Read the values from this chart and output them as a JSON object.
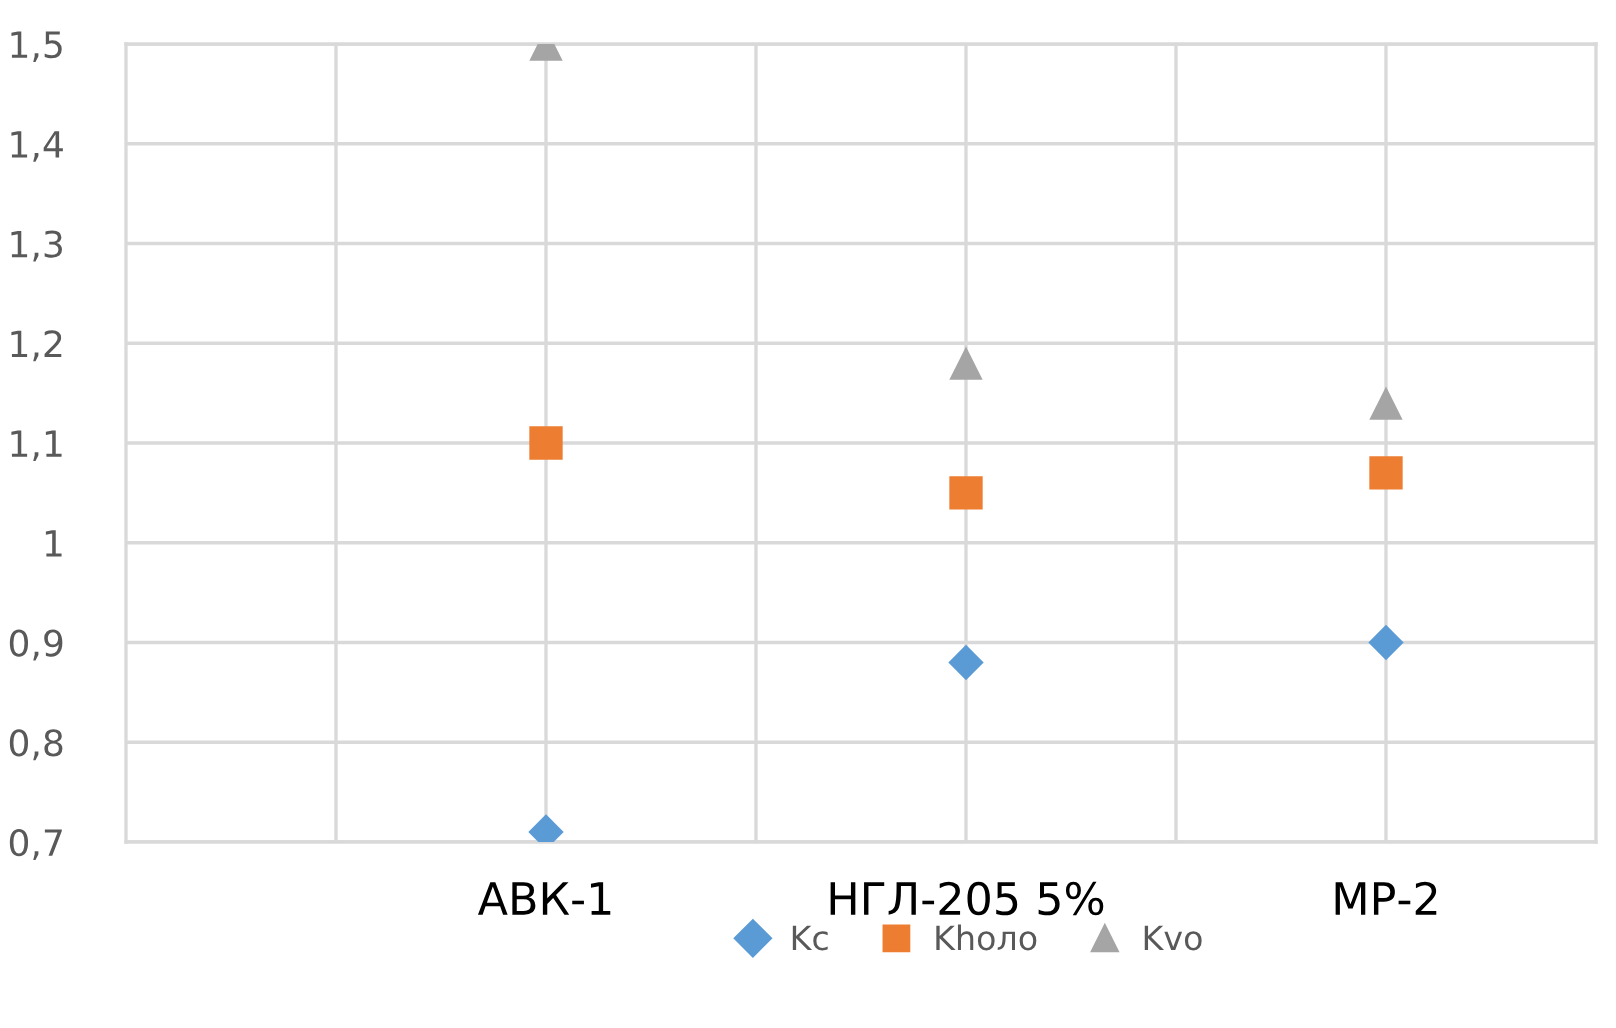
{
  "chart_data": {
    "type": "scatter",
    "categories": [
      "АВК-1",
      "НГЛ-205 5%",
      "МР-2"
    ],
    "series": [
      {
        "name": "Kc",
        "color": "#5b9bd5",
        "marker": "diamond",
        "values": [
          0.71,
          0.88,
          0.9
        ]
      },
      {
        "name": "Khоло",
        "color": "#ed7d31",
        "marker": "square",
        "values": [
          1.1,
          1.05,
          1.07
        ]
      },
      {
        "name": "Kvo",
        "color": "#a5a5a5",
        "marker": "triangle",
        "values": [
          1.5,
          1.18,
          1.14
        ]
      }
    ],
    "ylim": [
      0.7,
      1.5
    ],
    "yticks": [
      {
        "value": 0.7,
        "label": "0,7"
      },
      {
        "value": 0.8,
        "label": "0,8"
      },
      {
        "value": 0.9,
        "label": "0,9"
      },
      1,
      {
        "value": 1.1,
        "label": "1,1"
      },
      {
        "value": 1.2,
        "label": "1,2"
      },
      {
        "value": 1.3,
        "label": "1,3"
      },
      {
        "value": 1.4,
        "label": "1,4"
      },
      {
        "value": 1.5,
        "label": "1,5"
      }
    ],
    "grid": true,
    "legend": "bottom"
  }
}
